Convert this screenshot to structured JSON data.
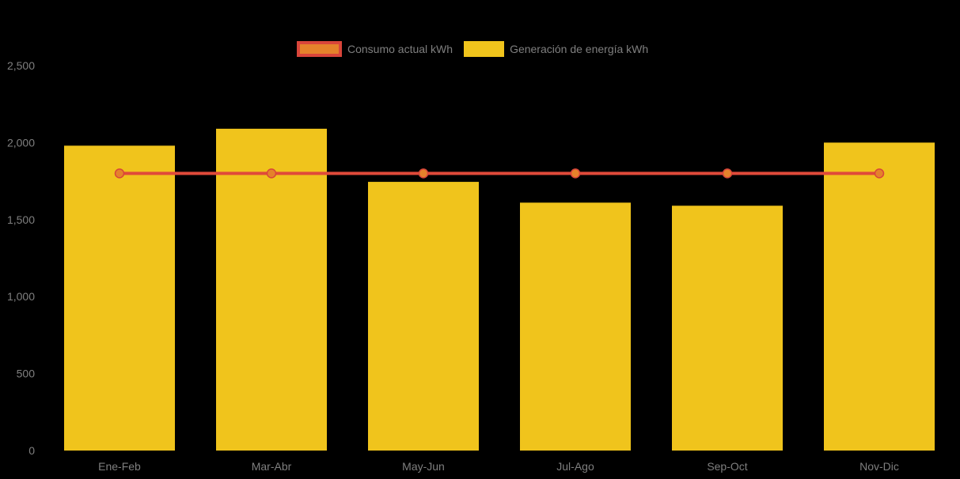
{
  "chart": {
    "background": "#000000",
    "axis_text_color": "#7F7F7F",
    "legend_text_color": "#7F7F7F"
  },
  "legend": {
    "items": [
      {
        "swatch_fill": "#E5822B",
        "swatch_border": "#D9453A"
      },
      {
        "swatch_fill": "#F0C41C",
        "swatch_border": ""
      }
    ]
  },
  "chart_data": {
    "type": "bar",
    "subtype": "bar-and-line-combo",
    "title": "",
    "xlabel": "",
    "ylabel": "",
    "categories": [
      "Ene-Feb",
      "Mar-Abr",
      "May-Jun",
      "Jul-Ago",
      "Sep-Oct",
      "Nov-Dic"
    ],
    "series": [
      {
        "name": "Consumo actual kWh",
        "type": "line",
        "values": [
          1800,
          1800,
          1800,
          1800,
          1800,
          1800
        ],
        "color": "#E04A3A",
        "marker_fill": "#E5822B",
        "marker_stroke": "#D9453A"
      },
      {
        "name": "Generación de energía kWh",
        "type": "bar",
        "values": [
          1980,
          2090,
          1745,
          1610,
          1590,
          2000
        ],
        "color": "#F0C41C"
      }
    ],
    "ylim": [
      0,
      2500
    ],
    "ytick_step": 500,
    "ytick_labels": [
      "0",
      "500",
      "1,000",
      "1,500",
      "2,000",
      "2,500"
    ],
    "grid": false,
    "legend_position": "top"
  }
}
